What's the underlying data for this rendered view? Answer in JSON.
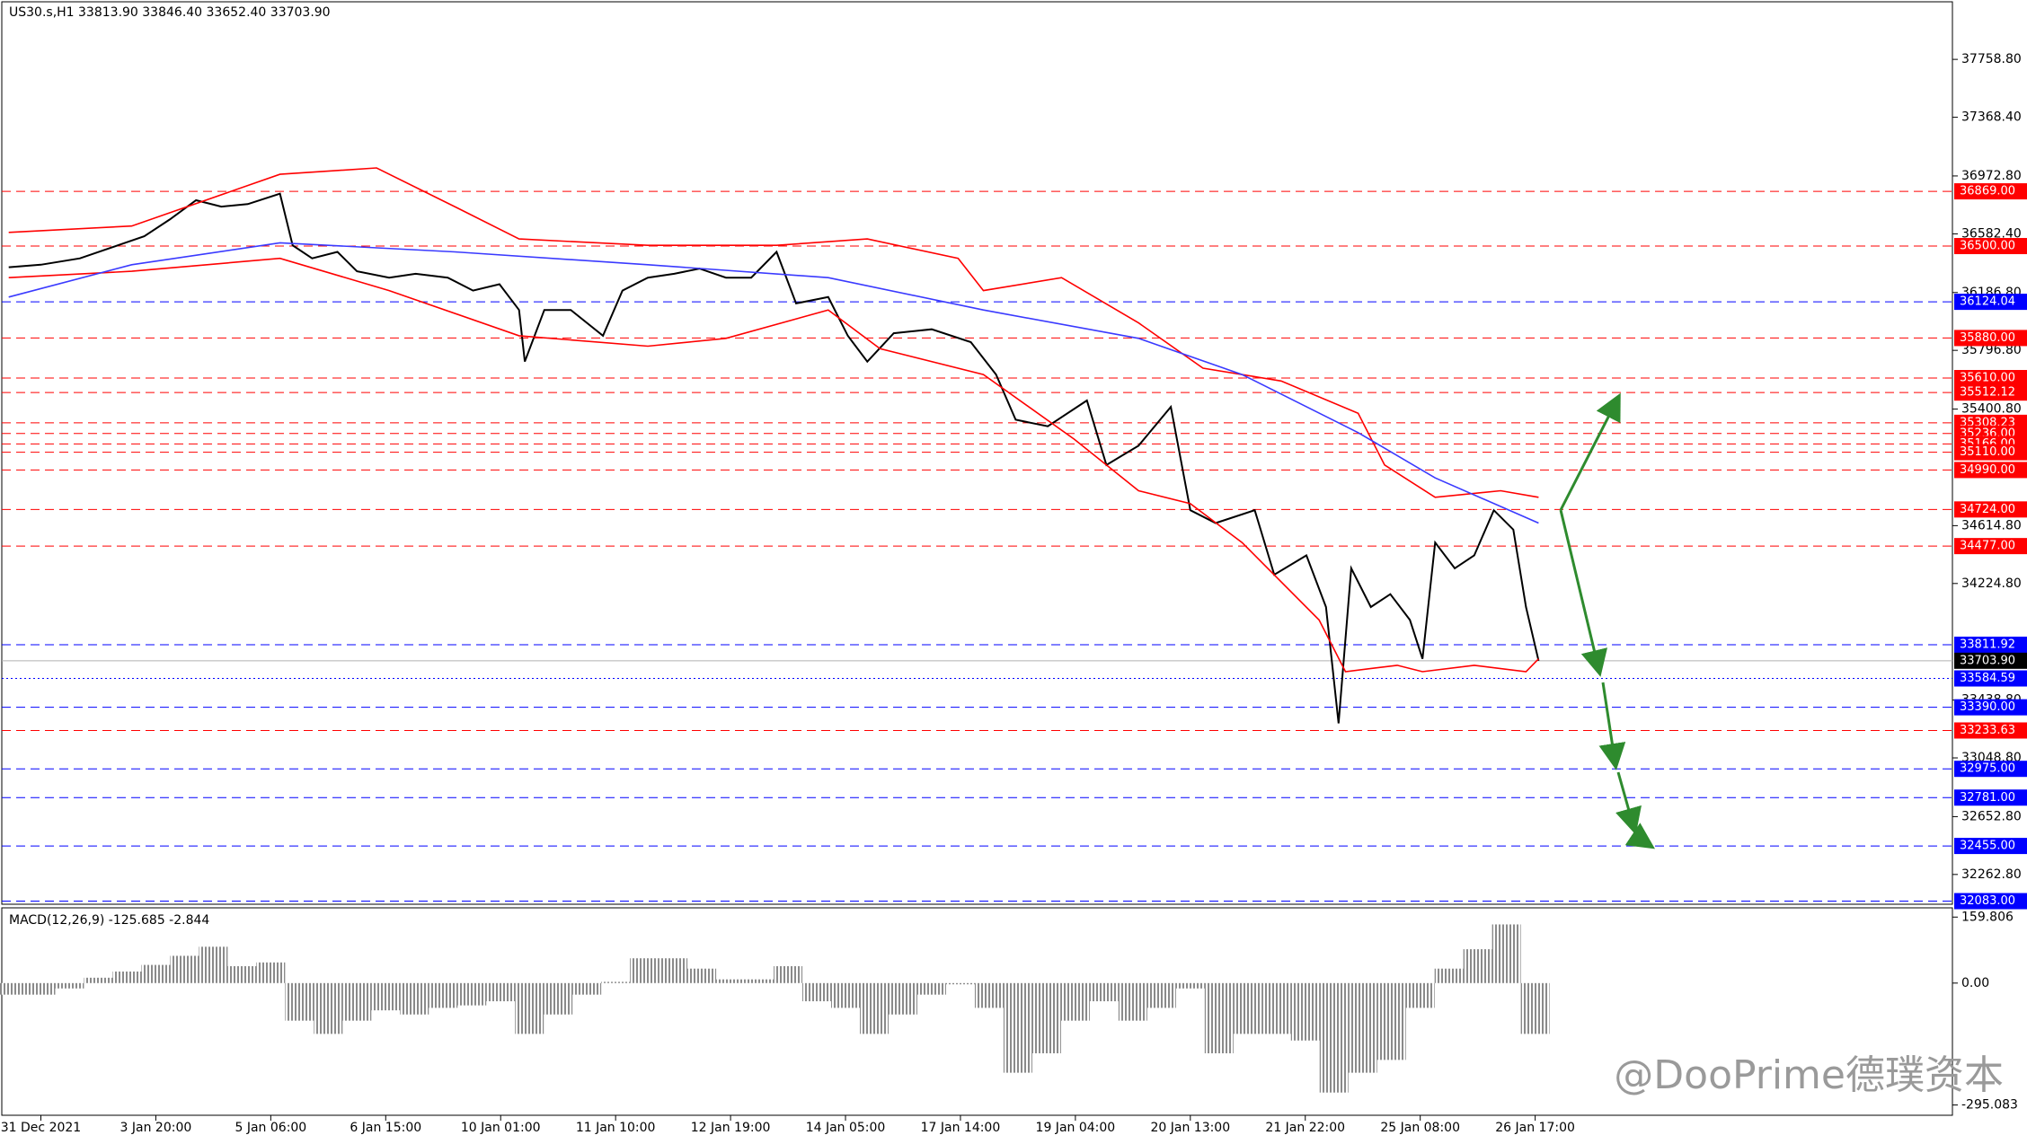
{
  "chart_data": [
    {
      "type": "line",
      "title": "US30.s,H1  33813.90 33846.40 33652.40 33703.90",
      "xlim": [
        -0.34,
        16.63
      ],
      "ylim": [
        32062,
        38141
      ],
      "yticks": [
        {
          "value": 37758.8,
          "label": "37758.80"
        },
        {
          "value": 37368.4,
          "label": "37368.40"
        },
        {
          "value": 36972.8,
          "label": "36972.80"
        },
        {
          "value": 36582.4,
          "label": "36582.40"
        },
        {
          "value": 36186.8,
          "label": "36186.80"
        },
        {
          "value": 35796.8,
          "label": "35796.80"
        },
        {
          "value": 35400.8,
          "label": "35400.80"
        },
        {
          "value": 34614.8,
          "label": "34614.80"
        },
        {
          "value": 34224.8,
          "label": "34224.80"
        },
        {
          "value": 33438.8,
          "label": "33438.80"
        },
        {
          "value": 33048.8,
          "label": "33048.80"
        },
        {
          "value": 32652.8,
          "label": "32652.80"
        },
        {
          "value": 32262.8,
          "label": "32262.80"
        }
      ],
      "series": [
        {
          "color": "#000000",
          "x": [
            -0.28,
            0,
            0.34,
            0.67,
            0.9,
            1.12,
            1.35,
            1.57,
            1.8,
            2.08,
            2.19,
            2.36,
            2.58,
            2.75,
            3.03,
            3.26,
            3.54,
            3.76,
            3.99,
            4.16,
            4.21,
            4.38,
            4.61,
            4.89,
            5.06,
            5.28,
            5.51,
            5.73,
            5.96,
            6.18,
            6.4,
            6.57,
            6.85,
            7.02,
            7.19,
            7.42,
            7.75,
            8.09,
            8.31,
            8.48,
            8.76,
            9.1,
            9.27,
            9.55,
            9.83,
            10.0,
            10.22,
            10.56,
            10.73,
            11.01,
            11.18,
            11.29,
            11.4,
            11.57,
            11.74,
            11.91,
            12.02,
            12.13,
            12.3,
            12.47,
            12.64,
            12.81,
            12.92,
            13.03
          ],
          "values": [
            36357,
            36374,
            36417,
            36505,
            36566,
            36679,
            36809,
            36766,
            36783,
            36853,
            36505,
            36417,
            36461,
            36330,
            36287,
            36313,
            36287,
            36200,
            36243,
            36069,
            35721,
            36069,
            36069,
            35895,
            36200,
            36287,
            36313,
            36348,
            36287,
            36287,
            36461,
            36113,
            36156,
            35895,
            35721,
            35912,
            35939,
            35852,
            35634,
            35329,
            35285,
            35459,
            35024,
            35154,
            35416,
            34719,
            34632,
            34719,
            34284,
            34414,
            34066,
            33282,
            34327,
            34066,
            34153,
            33979,
            33717,
            34501,
            34327,
            34414,
            34719,
            34588,
            34066,
            33703.9
          ]
        },
        {
          "color": "#ff0000",
          "x": [
            -0.28,
            0.79,
            2.08,
            2.92,
            3.6,
            4.16,
            5.28,
            6.4,
            7.19,
            7.98,
            8.2,
            8.88,
            9.55,
            10.11,
            10.79,
            11.46,
            11.69,
            12.13,
            12.7,
            13.03
          ],
          "values": [
            36592,
            36635,
            36984,
            37027,
            36766,
            36548,
            36505,
            36505,
            36548,
            36417,
            36200,
            36287,
            35982,
            35677,
            35590,
            35372,
            35024,
            34806,
            34850,
            34806
          ]
        },
        {
          "color": "#ff0000",
          "x": [
            -0.28,
            0.79,
            2.08,
            3.03,
            4.16,
            5.28,
            5.96,
            6.85,
            7.3,
            8.2,
            8.99,
            9.55,
            10.0,
            10.45,
            11.12,
            11.35,
            11.8,
            12.02,
            12.47,
            12.92,
            13.03
          ],
          "values": [
            36287,
            36330,
            36417,
            36200,
            35895,
            35825,
            35878,
            36069,
            35808,
            35634,
            35198,
            34850,
            34763,
            34501,
            33979,
            33630,
            33673,
            33630,
            33673,
            33630,
            33717
          ]
        },
        {
          "color": "#3a3aff",
          "x": [
            -0.28,
            0.79,
            2.08,
            3.6,
            5.28,
            6.85,
            8.2,
            9.55,
            10.45,
            11.46,
            12.13,
            13.03
          ],
          "values": [
            36156,
            36374,
            36522,
            36461,
            36374,
            36287,
            36069,
            35878,
            35634,
            35242,
            34937,
            34632
          ]
        }
      ],
      "levels": [
        {
          "value": 36869,
          "label": "36869.00",
          "color": "#ff0000"
        },
        {
          "value": 36500,
          "label": "36500.00",
          "color": "#ff0000"
        },
        {
          "value": 36124.04,
          "label": "36124.04",
          "color": "#0000ff"
        },
        {
          "value": 35880,
          "label": "35880.00",
          "color": "#ff0000"
        },
        {
          "value": 35610,
          "label": "35610.00",
          "color": "#ff0000"
        },
        {
          "value": 35512.12,
          "label": "35512.12",
          "color": "#ff0000"
        },
        {
          "value": 35308.23,
          "label": "35308.23",
          "color": "#ff0000"
        },
        {
          "value": 35236,
          "label": "35236.00",
          "color": "#ff0000"
        },
        {
          "value": 35166,
          "label": "35166.00",
          "color": "#ff0000"
        },
        {
          "value": 35110,
          "label": "35110.00",
          "color": "#ff0000"
        },
        {
          "value": 34990,
          "label": "34990.00",
          "color": "#ff0000"
        },
        {
          "value": 34724,
          "label": "34724.00",
          "color": "#ff0000"
        },
        {
          "value": 34477,
          "label": "34477.00",
          "color": "#ff0000"
        },
        {
          "value": 33811.92,
          "label": "33811.92",
          "color": "#0000ff"
        },
        {
          "value": 33584.59,
          "label": "33584.59",
          "color": "#0000ff",
          "style": "dotted"
        },
        {
          "value": 33390,
          "label": "33390.00",
          "color": "#0000ff"
        },
        {
          "value": 33233.63,
          "label": "33233.63",
          "color": "#ff0000"
        },
        {
          "value": 32975,
          "label": "32975.00",
          "color": "#0000ff"
        },
        {
          "value": 32781,
          "label": "32781.00",
          "color": "#0000ff"
        },
        {
          "value": 32455,
          "label": "32455.00",
          "color": "#0000ff"
        },
        {
          "value": 32083,
          "label": "32083.00",
          "color": "#0000ff"
        }
      ],
      "last_price": {
        "value": 33703.9,
        "label": "33703.90"
      },
      "watermark": "@DooPrime德璞资本"
    },
    {
      "type": "bar",
      "title": "MACD(12,26,9) -125.685 -2.844",
      "xlim": [
        -0.34,
        16.63
      ],
      "ylim": [
        -320,
        180
      ],
      "yticks": [
        159.806,
        {
          "value": 0,
          "label": "0.00"
        },
        -295.083
      ],
      "xticks": [
        {
          "value": 0,
          "label": "31 Dec 2021"
        },
        {
          "value": 1,
          "label": "3 Jan 20:00"
        },
        {
          "value": 2,
          "label": "5 Jan 06:00"
        },
        {
          "value": 3,
          "label": "6 Jan 15:00"
        },
        {
          "value": 4,
          "label": "10 Jan 01:00"
        },
        {
          "value": 5,
          "label": "11 Jan 10:00"
        },
        {
          "value": 6,
          "label": "12 Jan 19:00"
        },
        {
          "value": 7,
          "label": "14 Jan 05:00"
        },
        {
          "value": 8,
          "label": "17 Jan 14:00"
        },
        {
          "value": 9,
          "label": "19 Jan 04:00"
        },
        {
          "value": 10,
          "label": "20 Jan 13:00"
        },
        {
          "value": 11,
          "label": "21 Jan 22:00"
        },
        {
          "value": 12,
          "label": "25 Jan 08:00"
        },
        {
          "value": 13,
          "label": "26 Jan 17:00"
        }
      ],
      "color": "#808080",
      "x": [
        -0.25,
        0,
        0.25,
        0.5,
        0.75,
        1,
        1.25,
        1.5,
        1.75,
        2,
        2.25,
        2.5,
        2.75,
        3,
        3.25,
        3.5,
        3.75,
        4,
        4.25,
        4.5,
        4.75,
        5,
        5.25,
        5.5,
        5.75,
        6,
        6.25,
        6.5,
        6.75,
        7,
        7.25,
        7.5,
        7.75,
        8,
        8.25,
        8.5,
        8.75,
        9,
        9.25,
        9.5,
        9.75,
        10,
        10.25,
        10.5,
        10.75,
        11,
        11.25,
        11.5,
        11.75,
        12,
        12.25,
        12.5,
        12.75,
        13
      ],
      "values": [
        -28,
        -28,
        -13,
        13,
        28,
        44,
        66,
        88,
        41,
        50,
        -91,
        -123,
        -91,
        -66,
        -76,
        -60,
        -54,
        -44,
        -123,
        -76,
        -28,
        3,
        60,
        60,
        35,
        9,
        9,
        41,
        -44,
        -60,
        -123,
        -76,
        -28,
        -3,
        -60,
        -217,
        -170,
        -91,
        -44,
        -91,
        -60,
        -13,
        -170,
        -123,
        -123,
        -139,
        -265,
        -217,
        -186,
        -60,
        35,
        82,
        142,
        -123
      ]
    }
  ]
}
